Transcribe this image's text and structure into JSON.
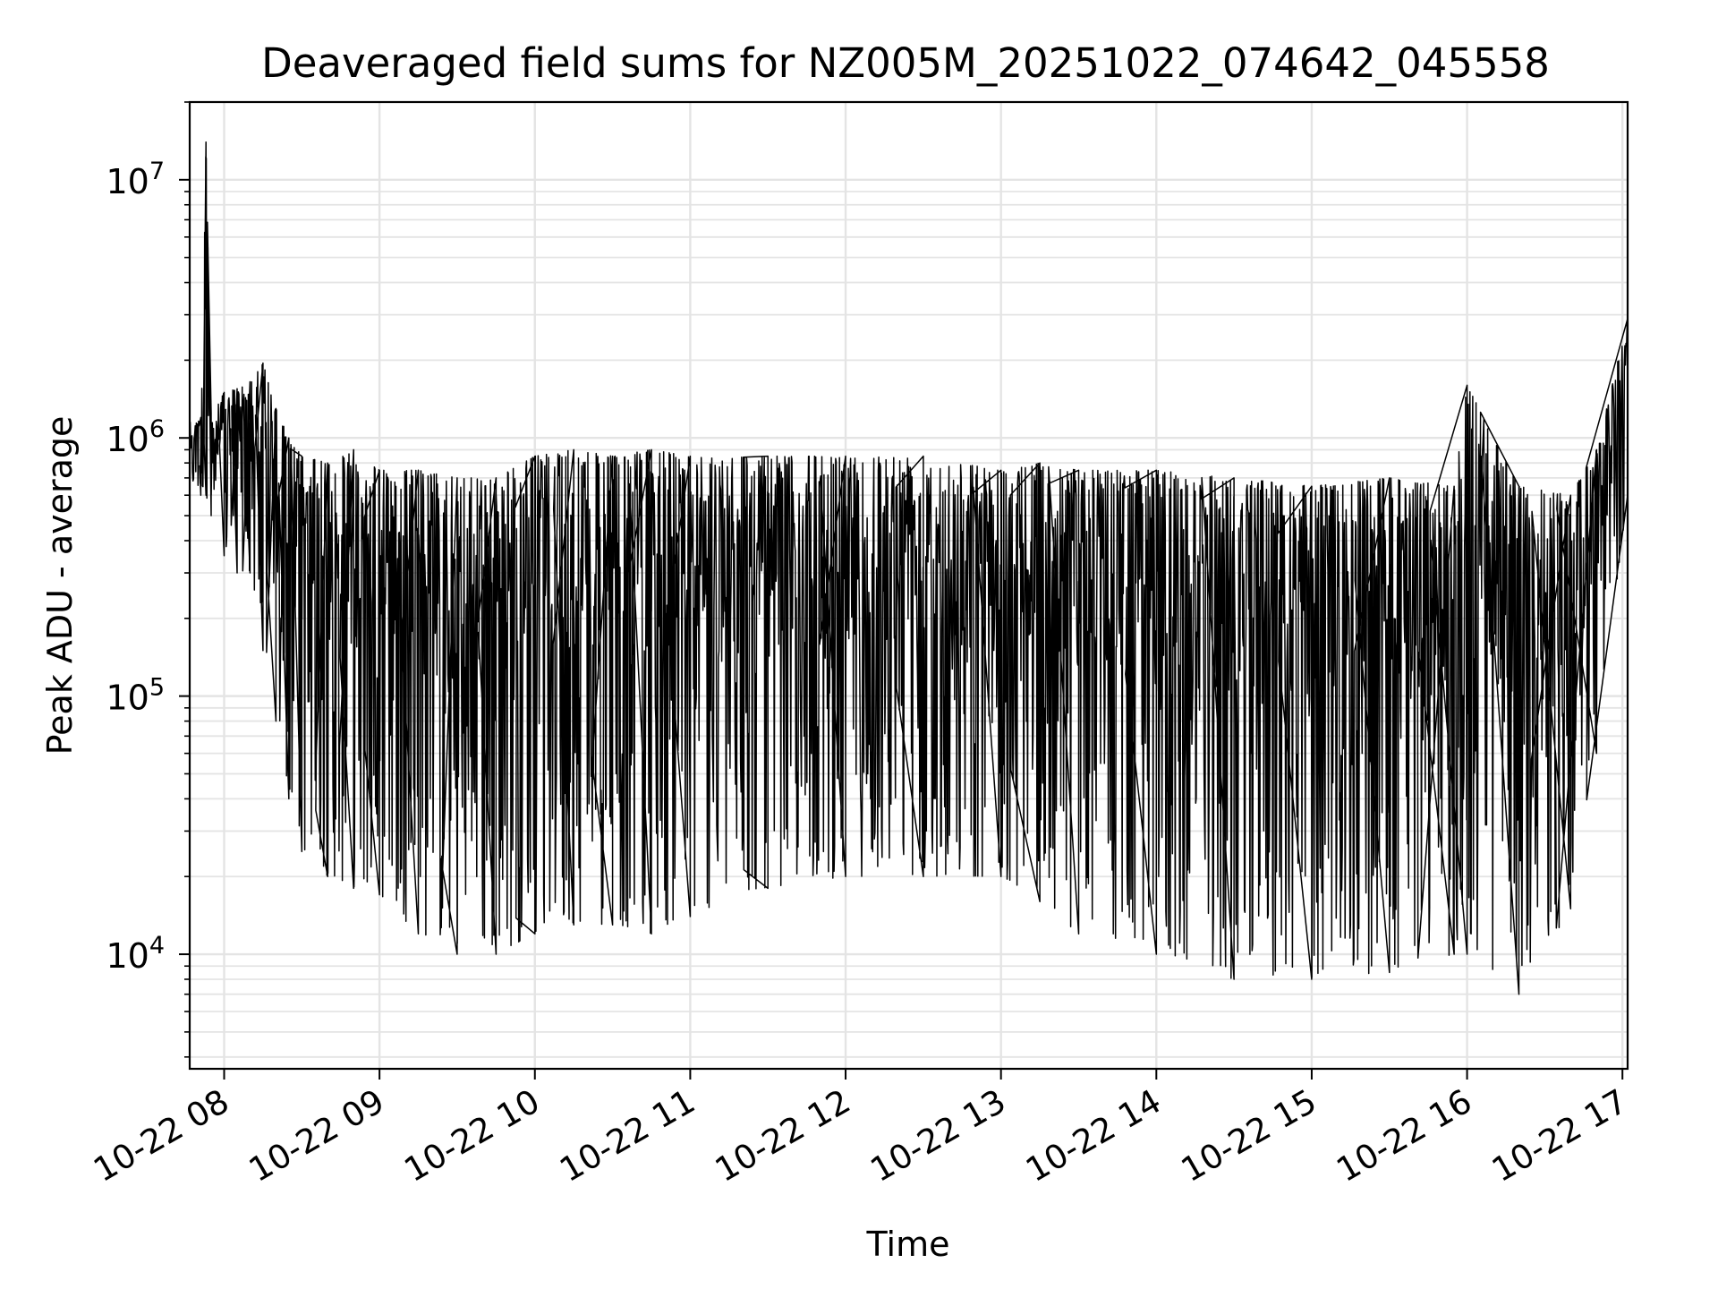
{
  "chart_data": {
    "type": "line",
    "title": "Deaveraged field sums for NZ005M_20251022_074642_045558",
    "xlabel": "Time",
    "ylabel": "Peak ADU - average",
    "y_scale": "log",
    "ylim": [
      3600,
      20000000
    ],
    "xlim": [
      "2025-10-22 07:46:42",
      "2025-10-22 17:02:00"
    ],
    "grid": true,
    "legend": "none",
    "x_ticks": [
      "10-22 08",
      "10-22 09",
      "10-22 10",
      "10-22 11",
      "10-22 12",
      "10-22 13",
      "10-22 14",
      "10-22 15",
      "10-22 16",
      "10-22 17"
    ],
    "y_ticks": [
      {
        "base": "10",
        "exp": "4",
        "value": 10000
      },
      {
        "base": "10",
        "exp": "5",
        "value": 100000
      },
      {
        "base": "10",
        "exp": "6",
        "value": 1000000
      },
      {
        "base": "10",
        "exp": "7",
        "value": 10000000
      }
    ],
    "series": [
      {
        "color": "#000000",
        "x": [
          "2025-10-22 07:46:42",
          "2025-10-22 07:51",
          "2025-10-22 07:53",
          "2025-10-22 07:55",
          "2025-10-22 08:00",
          "2025-10-22 08:05",
          "2025-10-22 08:10",
          "2025-10-22 08:15",
          "2025-10-22 08:20",
          "2025-10-22 08:25",
          "2025-10-22 08:30",
          "2025-10-22 08:40",
          "2025-10-22 08:50",
          "2025-10-22 09:00",
          "2025-10-22 09:15",
          "2025-10-22 09:30",
          "2025-10-22 09:45",
          "2025-10-22 10:00",
          "2025-10-22 10:15",
          "2025-10-22 10:30",
          "2025-10-22 10:45",
          "2025-10-22 11:00",
          "2025-10-22 11:30",
          "2025-10-22 12:00",
          "2025-10-22 12:30",
          "2025-10-22 13:00",
          "2025-10-22 13:15",
          "2025-10-22 13:30",
          "2025-10-22 14:00",
          "2025-10-22 14:30",
          "2025-10-22 15:00",
          "2025-10-22 15:30",
          "2025-10-22 15:55",
          "2025-10-22 16:00",
          "2025-10-22 16:20",
          "2025-10-22 16:40",
          "2025-10-22 16:50",
          "2025-10-22 17:02"
        ],
        "upper": [
          1150000,
          1200000,
          14000000,
          1250000,
          1500000,
          1550000,
          1650000,
          1950000,
          1300000,
          1000000,
          850000,
          800000,
          900000,
          750000,
          750000,
          700000,
          700000,
          850000,
          900000,
          850000,
          900000,
          850000,
          850000,
          850000,
          850000,
          750000,
          800000,
          750000,
          750000,
          700000,
          650000,
          700000,
          650000,
          1600000,
          650000,
          600000,
          900000,
          2900000
        ],
        "lower": [
          650000,
          600000,
          600000,
          500000,
          350000,
          300000,
          300000,
          150000,
          80000,
          40000,
          25000,
          20000,
          18000,
          17000,
          12000,
          10000,
          10000,
          12000,
          13000,
          13000,
          12000,
          14000,
          18000,
          20000,
          20000,
          20000,
          16000,
          12000,
          10000,
          8000,
          8000,
          8500,
          10000,
          10000,
          7000,
          15000,
          60000,
          600000
        ]
      }
    ]
  }
}
